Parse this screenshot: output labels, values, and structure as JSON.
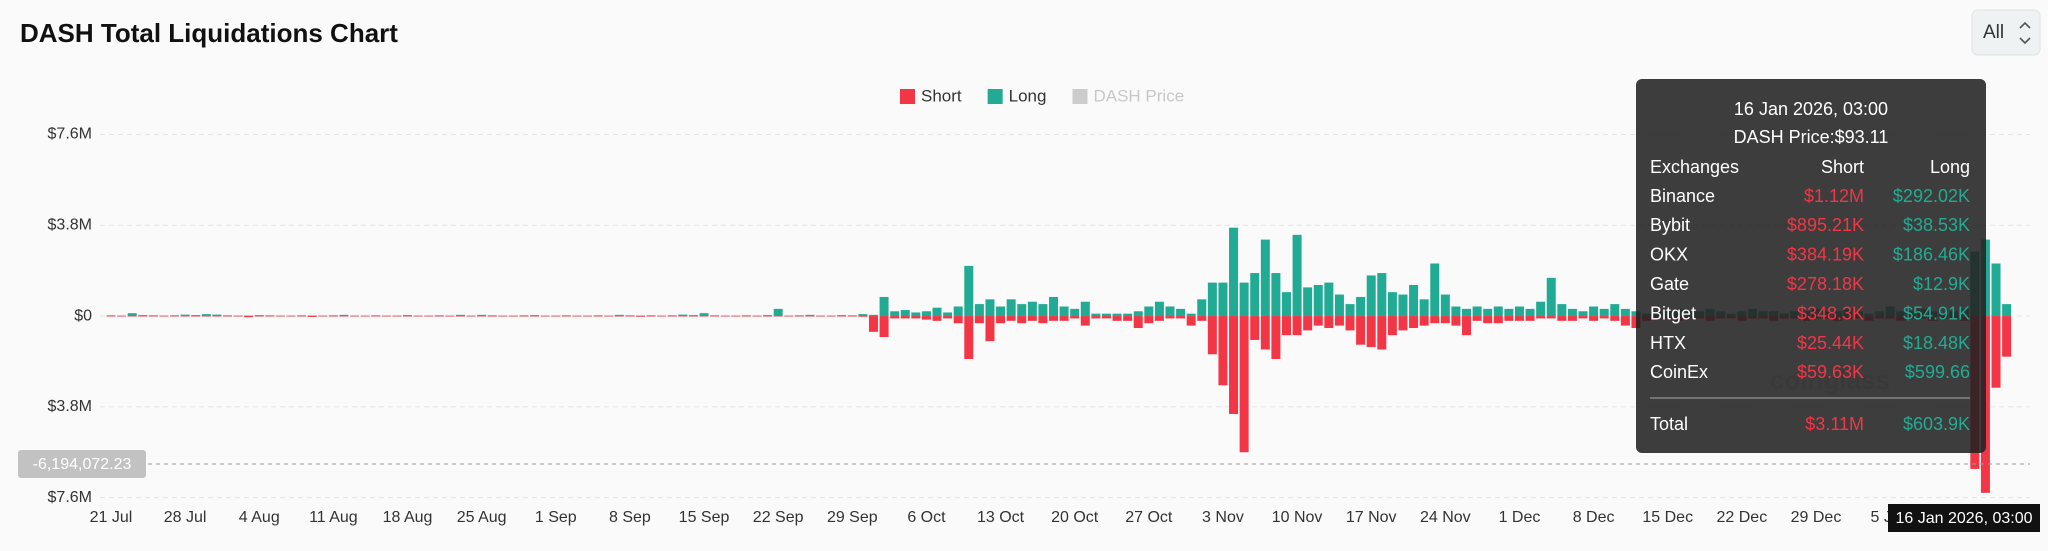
{
  "chart_data": {
    "type": "bar",
    "title": "DASH Total Liquidations Chart",
    "range_button": "All",
    "watermark": "coinglass",
    "categories": [
      "21 Jul",
      null,
      null,
      null,
      null,
      null,
      null,
      "28 Jul",
      null,
      null,
      null,
      null,
      null,
      null,
      "4 Aug",
      null,
      null,
      null,
      null,
      null,
      null,
      "11 Aug",
      null,
      null,
      null,
      null,
      null,
      null,
      "18 Aug",
      null,
      null,
      null,
      null,
      null,
      null,
      "25 Aug",
      null,
      null,
      null,
      null,
      null,
      null,
      "1 Sep",
      null,
      null,
      null,
      null,
      null,
      null,
      "8 Sep",
      null,
      null,
      null,
      null,
      null,
      null,
      "15 Sep",
      null,
      null,
      null,
      null,
      null,
      null,
      "22 Sep",
      null,
      null,
      null,
      null,
      null,
      null,
      "29 Sep",
      null,
      null,
      null,
      null,
      null,
      null,
      "6 Oct",
      null,
      null,
      null,
      null,
      null,
      null,
      "13 Oct",
      null,
      null,
      null,
      null,
      null,
      null,
      "20 Oct",
      null,
      null,
      null,
      null,
      null,
      null,
      "27 Oct",
      null,
      null,
      null,
      null,
      null,
      null,
      "3 Nov",
      null,
      null,
      null,
      null,
      null,
      null,
      "10 Nov",
      null,
      null,
      null,
      null,
      null,
      null,
      "17 Nov",
      null,
      null,
      null,
      null,
      null,
      null,
      "24 Nov",
      null,
      null,
      null,
      null,
      null,
      null,
      "1 Dec",
      null,
      null,
      null,
      null,
      null,
      null,
      "8 Dec",
      null,
      null,
      null,
      null,
      null,
      null,
      "15 Dec",
      null,
      null,
      null,
      null,
      null,
      null,
      "22 Dec",
      null,
      null,
      null,
      null,
      null,
      null,
      "29 Dec",
      null,
      null,
      null,
      null,
      null,
      null,
      "5 Jan",
      null,
      null,
      null,
      null,
      null,
      null,
      null,
      null,
      null,
      null,
      null
    ],
    "series": [
      {
        "name": "Short",
        "color": "#f23645",
        "values": [
          -0.02,
          -0.02,
          -0.02,
          -0.02,
          -0.02,
          -0.02,
          -0.02,
          -0.02,
          -0.02,
          -0.02,
          -0.02,
          -0.02,
          -0.02,
          -0.05,
          -0.02,
          -0.02,
          -0.02,
          -0.02,
          -0.02,
          -0.04,
          -0.02,
          -0.02,
          -0.02,
          -0.02,
          -0.02,
          -0.02,
          -0.02,
          -0.02,
          -0.02,
          -0.02,
          -0.02,
          -0.02,
          -0.02,
          -0.02,
          -0.02,
          -0.02,
          -0.02,
          -0.02,
          -0.02,
          -0.02,
          -0.02,
          -0.02,
          -0.02,
          -0.02,
          -0.02,
          -0.02,
          -0.02,
          -0.02,
          -0.02,
          -0.02,
          -0.03,
          -0.02,
          -0.02,
          -0.02,
          -0.02,
          -0.02,
          -0.02,
          -0.02,
          -0.02,
          -0.02,
          -0.02,
          -0.02,
          -0.02,
          -0.02,
          -0.02,
          -0.02,
          -0.02,
          -0.02,
          -0.02,
          -0.02,
          -0.02,
          -0.03,
          -0.66,
          -0.88,
          -0.1,
          -0.1,
          -0.1,
          -0.15,
          -0.2,
          -0.1,
          -0.3,
          -1.8,
          -0.3,
          -1.05,
          -0.3,
          -0.2,
          -0.3,
          -0.2,
          -0.3,
          -0.2,
          -0.2,
          -0.1,
          -0.4,
          -0.1,
          -0.1,
          -0.2,
          -0.2,
          -0.5,
          -0.3,
          -0.2,
          -0.1,
          -0.1,
          -0.4,
          -0.2,
          -1.6,
          -2.9,
          -4.1,
          -5.7,
          -1.0,
          -1.4,
          -1.8,
          -0.8,
          -0.8,
          -0.6,
          -0.4,
          -0.5,
          -0.4,
          -0.6,
          -1.2,
          -1.3,
          -1.4,
          -0.8,
          -0.6,
          -0.5,
          -0.4,
          -0.3,
          -0.3,
          -0.4,
          -0.8,
          -0.2,
          -0.3,
          -0.3,
          -0.2,
          -0.2,
          -0.2,
          -0.1,
          -0.1,
          -0.2,
          -0.2,
          -0.1,
          -0.2,
          -0.1,
          -0.2,
          -0.4,
          -0.5,
          -0.2,
          -0.1,
          -0.1,
          -0.2,
          -0.1,
          -0.1,
          -0.2,
          -0.1,
          -0.1,
          -0.2,
          -0.1,
          -0.1,
          -0.2,
          -0.1,
          -0.1,
          -0.2,
          -0.1,
          -0.1,
          -0.2,
          -0.1,
          -0.1,
          -0.2,
          -0.1,
          -0.1,
          -0.2,
          -0.1,
          -0.1,
          -0.2,
          -0.1,
          -0.1,
          -0.2,
          -6.4,
          -7.4,
          -3.0,
          -1.7
        ]
      },
      {
        "name": "Long",
        "color": "#22ab94",
        "values": [
          0.03,
          0.02,
          0.12,
          0.04,
          0.03,
          0.02,
          0.03,
          0.06,
          0.04,
          0.08,
          0.06,
          0.03,
          0.02,
          0.02,
          0.04,
          0.03,
          0.02,
          0.02,
          0.03,
          0.02,
          0.02,
          0.03,
          0.05,
          0.02,
          0.02,
          0.03,
          0.02,
          0.02,
          0.04,
          0.02,
          0.02,
          0.03,
          0.02,
          0.05,
          0.02,
          0.05,
          0.03,
          0.02,
          0.02,
          0.03,
          0.04,
          0.02,
          0.02,
          0.03,
          0.02,
          0.02,
          0.03,
          0.02,
          0.05,
          0.03,
          0.02,
          0.03,
          0.02,
          0.03,
          0.06,
          0.04,
          0.12,
          0.03,
          0.02,
          0.02,
          0.03,
          0.02,
          0.04,
          0.3,
          0.02,
          0.03,
          0.05,
          0.02,
          0.02,
          0.04,
          0.03,
          0.08,
          0.05,
          0.8,
          0.2,
          0.25,
          0.15,
          0.2,
          0.35,
          0.15,
          0.4,
          2.1,
          0.5,
          0.7,
          0.4,
          0.7,
          0.5,
          0.6,
          0.5,
          0.8,
          0.4,
          0.3,
          0.6,
          0.1,
          0.1,
          0.1,
          0.1,
          0.2,
          0.4,
          0.6,
          0.4,
          0.3,
          0.1,
          0.7,
          1.4,
          1.4,
          3.7,
          1.4,
          1.8,
          3.2,
          1.8,
          1.0,
          3.4,
          1.2,
          1.3,
          1.4,
          0.9,
          0.5,
          0.8,
          1.7,
          1.8,
          1.0,
          0.9,
          1.3,
          0.7,
          2.2,
          0.9,
          0.4,
          0.3,
          0.4,
          0.3,
          0.4,
          0.3,
          0.4,
          0.3,
          0.6,
          1.6,
          0.5,
          0.3,
          0.2,
          0.4,
          0.3,
          0.5,
          0.3,
          0.2,
          0.1,
          0.2,
          0.2,
          0.3,
          0.2,
          0.2,
          0.3,
          0.2,
          0.1,
          0.2,
          0.3,
          0.2,
          0.2,
          0.1,
          0.2,
          0.2,
          0.3,
          0.2,
          0.2,
          0.3,
          0.2,
          0.1,
          0.2,
          0.4,
          0.2,
          0.2,
          0.3,
          0.2,
          0.1,
          0.2,
          0.3,
          2.7,
          3.2,
          2.2,
          0.5
        ]
      },
      {
        "name": "DASH Price",
        "color": "#cccccc",
        "hidden": true
      }
    ],
    "ylim": [
      -7.6,
      7.6
    ],
    "yticks": [
      {
        "value": 7.6,
        "label": "$7.6M"
      },
      {
        "value": 3.8,
        "label": "$3.8M"
      },
      {
        "value": 0,
        "label": "$0"
      },
      {
        "value": -3.8,
        "label": "$3.8M"
      },
      {
        "value": -7.6,
        "label": "$7.6M"
      }
    ],
    "grid": true,
    "crosshair_y_label": "-6,194,072.23",
    "crosshair_x_label": "16 Jan 2026, 03:00",
    "tooltip": {
      "title": "16 Jan 2026, 03:00",
      "price": "DASH Price:$93.11",
      "header": [
        "Exchanges",
        "Short",
        "Long"
      ],
      "rows": [
        [
          "Binance",
          "$1.12M",
          "$292.02K"
        ],
        [
          "Bybit",
          "$895.21K",
          "$38.53K"
        ],
        [
          "OKX",
          "$384.19K",
          "$186.46K"
        ],
        [
          "Gate",
          "$278.18K",
          "$12.9K"
        ],
        [
          "Bitget",
          "$348.3K",
          "$54.91K"
        ],
        [
          "HTX",
          "$25.44K",
          "$18.48K"
        ],
        [
          "CoinEx",
          "$59.63K",
          "$599.66"
        ]
      ],
      "total": [
        "Total",
        "$3.11M",
        "$603.9K"
      ]
    }
  }
}
